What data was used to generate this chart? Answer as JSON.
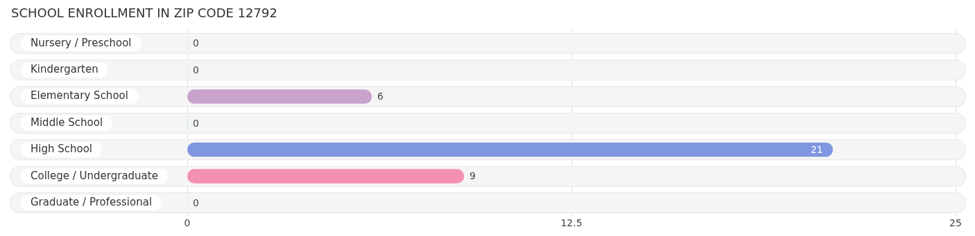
{
  "chart_data": {
    "type": "bar",
    "orientation": "horizontal",
    "title": "SCHOOL ENROLLMENT IN ZIP CODE 12792",
    "categories": [
      "Nursery / Preschool",
      "Kindergarten",
      "Elementary School",
      "Middle School",
      "High School",
      "College / Undergraduate",
      "Graduate / Professional"
    ],
    "values": [
      0,
      0,
      6,
      0,
      21,
      9,
      0
    ],
    "colors": [
      "#f2b4b4",
      "#a9c8ec",
      "#c9a3cb",
      "#7ecfd3",
      "#7f96e0",
      "#f490b0",
      "#f8c89c"
    ],
    "xlim": [
      0,
      25
    ],
    "xticks": [
      0,
      12.5,
      25
    ],
    "grid": "x",
    "data_labels": true,
    "legend": false
  }
}
